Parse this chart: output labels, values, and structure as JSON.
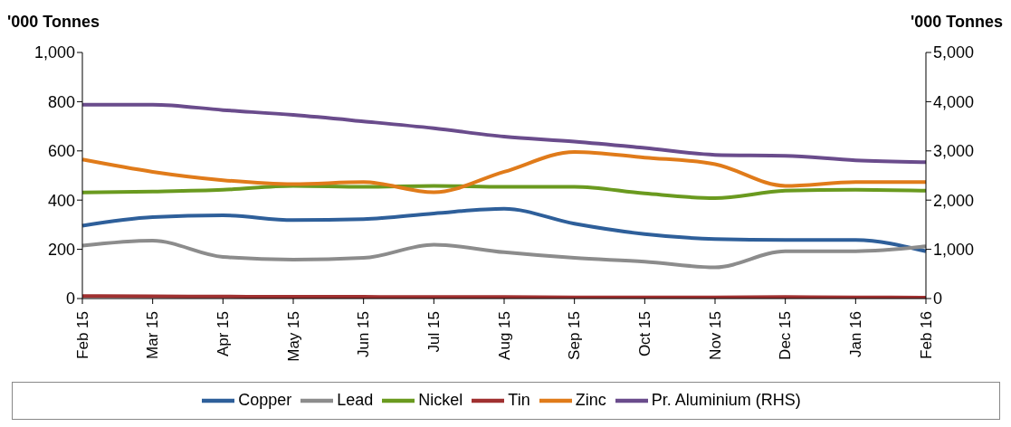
{
  "chart_data": {
    "type": "line",
    "ylabel": "'000 Tonnes",
    "y2label": "'000 Tonnes",
    "categories": [
      "Feb 15",
      "Mar 15",
      "Apr 15",
      "May 15",
      "Jun 15",
      "Jul 15",
      "Aug 15",
      "Sep 15",
      "Oct 15",
      "Nov 15",
      "Dec 15",
      "Jan 16",
      "Feb 16"
    ],
    "series": [
      {
        "name": "Copper",
        "color": "#2e5f9a",
        "values": [
          296,
          331,
          338,
          319,
          323,
          346,
          365,
          304,
          262,
          242,
          238,
          238,
          192
        ]
      },
      {
        "name": "Lead",
        "color": "#8c8c8c",
        "values": [
          215,
          235,
          169,
          158,
          165,
          219,
          188,
          165,
          150,
          127,
          192,
          192,
          212
        ]
      },
      {
        "name": "Nickel",
        "color": "#6a9a1f",
        "values": [
          431,
          435,
          442,
          458,
          454,
          458,
          454,
          454,
          427,
          408,
          438,
          442,
          438
        ]
      },
      {
        "name": "Tin",
        "color": "#a03030",
        "values": [
          10,
          9,
          8,
          7,
          7,
          6,
          6,
          5,
          5,
          5,
          6,
          5,
          4
        ]
      },
      {
        "name": "Zinc",
        "color": "#e07b1a",
        "values": [
          565,
          515,
          481,
          465,
          473,
          432,
          515,
          596,
          573,
          546,
          458,
          473,
          473
        ]
      },
      {
        "name": "Pr. Aluminium (RHS)",
        "color": "#6a4c8c",
        "axis": "y2",
        "values": [
          3940,
          3940,
          3830,
          3730,
          3600,
          3460,
          3290,
          3190,
          3060,
          2920,
          2900,
          2810,
          2770
        ]
      }
    ],
    "ylim": [
      0,
      1000
    ],
    "yticks": [
      0,
      {
        "value": 200,
        "label": "200"
      },
      {
        "value": 400,
        "label": "400"
      },
      {
        "value": 600,
        "label": "600"
      },
      {
        "value": 800,
        "label": "800"
      },
      {
        "value": 1000,
        "label": "1,000"
      }
    ],
    "y2lim": [
      0,
      5000
    ],
    "y2ticks": [
      0,
      {
        "value": 1000,
        "label": "1,000"
      },
      {
        "value": 2000,
        "label": "2,000"
      },
      {
        "value": 3000,
        "label": "3,000"
      },
      {
        "value": 4000,
        "label": "4,000"
      },
      {
        "value": 5000,
        "label": "5,000"
      }
    ],
    "legend": "bottom",
    "marker": "none",
    "line_style": "solid",
    "grid": false
  }
}
